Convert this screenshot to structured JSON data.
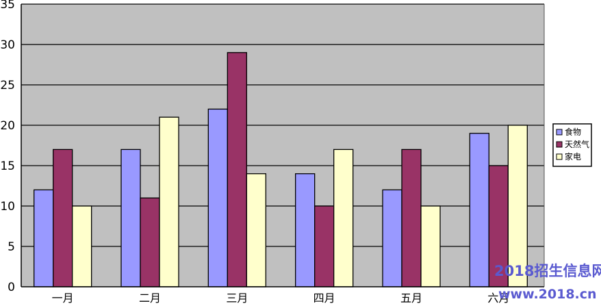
{
  "chart_data": {
    "type": "bar",
    "categories": [
      "一月",
      "二月",
      "三月",
      "四月",
      "五月",
      "六月"
    ],
    "series": [
      {
        "name": "食物",
        "values": [
          12,
          17,
          22,
          14,
          12,
          19
        ],
        "color": "#9999ff"
      },
      {
        "name": "天然气",
        "values": [
          17,
          11,
          29,
          10,
          17,
          15
        ],
        "color": "#993366"
      },
      {
        "name": "家电",
        "values": [
          10,
          21,
          14,
          17,
          10,
          20
        ],
        "color": "#ffffcc"
      }
    ],
    "ylim": [
      0,
      35
    ],
    "yticks": [
      0,
      5,
      10,
      15,
      20,
      25,
      30,
      35
    ],
    "grid": true,
    "legend_position": "right",
    "plot_background": "#c0c0c0",
    "title": "",
    "xlabel": "",
    "ylabel": ""
  },
  "watermark": {
    "line1": "2018招生信息网",
    "line2": "www.2018.cn"
  }
}
